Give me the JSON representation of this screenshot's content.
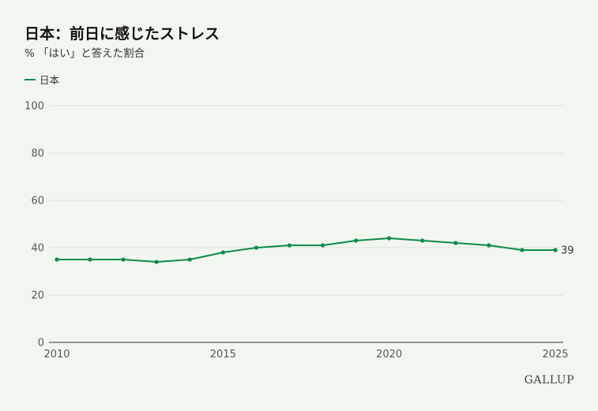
{
  "title": "日本：前日に感じたストレス",
  "subtitle": "% 「はい」と答えた割合",
  "legend": {
    "label": "日本"
  },
  "brand": "GALLUP",
  "colors": {
    "line": "#0f8a4a",
    "grid": "#d9e2d6",
    "axis": "#333333"
  },
  "chart_data": {
    "type": "line",
    "title": "日本：前日に感じたストレス",
    "subtitle": "% 「はい」と答えた割合",
    "xlabel": "",
    "ylabel": "",
    "x": [
      2010,
      2011,
      2012,
      2013,
      2014,
      2015,
      2016,
      2017,
      2018,
      2019,
      2020,
      2021,
      2022,
      2023,
      2024,
      2025
    ],
    "series": [
      {
        "name": "日本",
        "values": [
          35,
          35,
          35,
          34,
          35,
          38,
          40,
          41,
          41,
          43,
          44,
          43,
          42,
          41,
          39,
          39
        ]
      }
    ],
    "ylim": [
      0,
      100
    ],
    "yticks": [
      0,
      20,
      40,
      60,
      80,
      100
    ],
    "xticks": [
      2010,
      2015,
      2020,
      2025
    ],
    "xlim": [
      2010,
      2025
    ],
    "end_label": "39",
    "grid": true,
    "legend_position": "top-left"
  }
}
